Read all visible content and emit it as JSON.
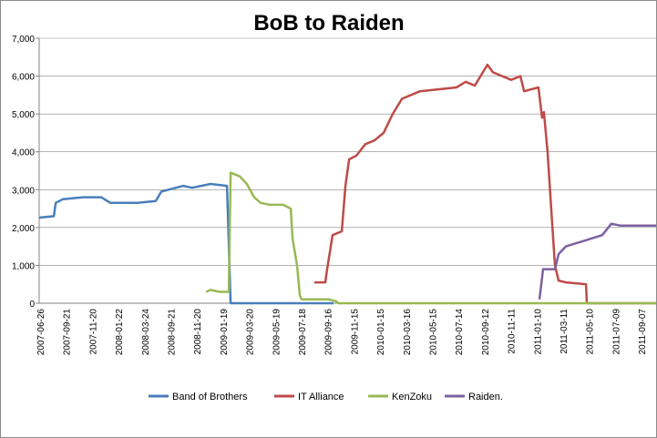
{
  "chart_data": {
    "type": "line",
    "title": "BoB to Raiden",
    "xlabel": "",
    "ylabel": "",
    "ylim": [
      0,
      7000
    ],
    "yticks": [
      "0",
      "1,000",
      "2,000",
      "3,000",
      "4,000",
      "5,000",
      "6,000",
      "7,000"
    ],
    "ytick_values": [
      0,
      1000,
      2000,
      3000,
      4000,
      5000,
      6000,
      7000
    ],
    "categories": [
      "2007-06-26",
      "2007-09-21",
      "2007-11-20",
      "2008-01-22",
      "2008-03-24",
      "2008-09-21",
      "2008-11-20",
      "2009-01-19",
      "2009-03-20",
      "2009-05-19",
      "2009-07-18",
      "2009-09-16",
      "2009-11-15",
      "2010-01-15",
      "2010-03-16",
      "2010-05-15",
      "2010-07-14",
      "2010-09-12",
      "2010-11-11",
      "2011-01-10",
      "2011-03-11",
      "2011-05-10",
      "2011-07-09",
      "2011-09-07"
    ],
    "x_units": "category label index (fractional)",
    "grid": "horizontal",
    "legend_position": "bottom",
    "series": [
      {
        "name": "Band of Brothers",
        "color": "#4a7ebb",
        "points": [
          [
            -0.07,
            2260
          ],
          [
            0.49,
            2300
          ],
          [
            0.56,
            2650
          ],
          [
            0.84,
            2750
          ],
          [
            1.6,
            2800
          ],
          [
            2.3,
            2800
          ],
          [
            2.65,
            2650
          ],
          [
            3.69,
            2650
          ],
          [
            4.39,
            2700
          ],
          [
            4.6,
            2950
          ],
          [
            5.44,
            3100
          ],
          [
            5.78,
            3050
          ],
          [
            6.48,
            3150
          ],
          [
            7.11,
            3100
          ],
          [
            7.25,
            0
          ],
          [
            11.18,
            0
          ]
        ]
      },
      {
        "name": "IT Alliance",
        "color": "#be4b48",
        "points": [
          [
            10.45,
            550
          ],
          [
            10.87,
            550
          ],
          [
            10.94,
            900
          ],
          [
            11.15,
            1800
          ],
          [
            11.5,
            1900
          ],
          [
            11.64,
            3100
          ],
          [
            11.78,
            3800
          ],
          [
            12.06,
            3900
          ],
          [
            12.4,
            4200
          ],
          [
            12.75,
            4300
          ],
          [
            13.1,
            4500
          ],
          [
            13.45,
            5000
          ],
          [
            13.8,
            5400
          ],
          [
            14.49,
            5600
          ],
          [
            15.19,
            5650
          ],
          [
            15.89,
            5700
          ],
          [
            16.24,
            5850
          ],
          [
            16.59,
            5750
          ],
          [
            17.07,
            6300
          ],
          [
            17.28,
            6100
          ],
          [
            17.98,
            5900
          ],
          [
            18.33,
            6000
          ],
          [
            18.47,
            5600
          ],
          [
            19.02,
            5700
          ],
          [
            19.16,
            4900
          ],
          [
            19.23,
            5050
          ],
          [
            19.37,
            4000
          ],
          [
            19.51,
            2500
          ],
          [
            19.65,
            1000
          ],
          [
            19.79,
            600
          ],
          [
            20.07,
            550
          ],
          [
            20.84,
            500
          ],
          [
            20.87,
            0
          ],
          [
            23.55,
            0
          ]
        ]
      },
      {
        "name": "KenZoku",
        "color": "#98b954",
        "points": [
          [
            6.31,
            300
          ],
          [
            6.48,
            350
          ],
          [
            6.83,
            300
          ],
          [
            7.18,
            300
          ],
          [
            7.25,
            3450
          ],
          [
            7.6,
            3350
          ],
          [
            7.87,
            3150
          ],
          [
            8.15,
            2800
          ],
          [
            8.4,
            2650
          ],
          [
            8.75,
            2600
          ],
          [
            9.27,
            2600
          ],
          [
            9.55,
            2500
          ],
          [
            9.62,
            1700
          ],
          [
            9.79,
            1000
          ],
          [
            9.9,
            200
          ],
          [
            9.97,
            100
          ],
          [
            11.01,
            100
          ],
          [
            11.29,
            50
          ],
          [
            11.36,
            0
          ],
          [
            23.55,
            0
          ]
        ]
      },
      {
        "name": "Raiden.",
        "color": "#7d60a0",
        "points": [
          [
            19.06,
            100
          ],
          [
            19.2,
            900
          ],
          [
            19.65,
            900
          ],
          [
            19.79,
            1300
          ],
          [
            20.07,
            1500
          ],
          [
            20.77,
            1650
          ],
          [
            21.46,
            1800
          ],
          [
            21.81,
            2100
          ],
          [
            22.16,
            2050
          ],
          [
            23.03,
            2050
          ],
          [
            23.55,
            2050
          ]
        ]
      }
    ]
  }
}
